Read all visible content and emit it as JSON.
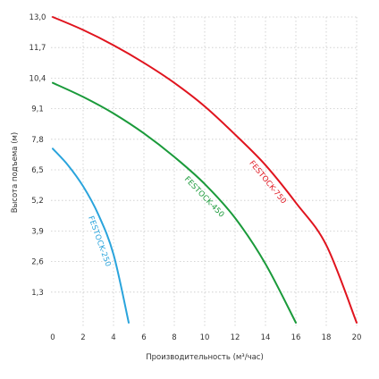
{
  "chart_data": {
    "type": "line",
    "xlabel": "Производительность (м³/час)",
    "ylabel": "Высота подъема (м)",
    "x_ticks": [
      "0",
      "2",
      "4",
      "6",
      "8",
      "10",
      "12",
      "14",
      "16",
      "18",
      "20"
    ],
    "y_ticks": [
      "1,3",
      "2,6",
      "3,9",
      "5,2",
      "6,5",
      "7,8",
      "9,1",
      "10,4",
      "11,7",
      "13,0"
    ],
    "xlim": [
      0,
      20
    ],
    "ylim": [
      0,
      13
    ],
    "grid": true,
    "series": [
      {
        "name": "FESTOCK-750",
        "color": "#e0141e",
        "x": [
          0,
          2,
          4,
          6,
          8,
          10,
          12,
          14,
          16,
          18,
          20
        ],
        "y": [
          13.0,
          12.45,
          11.8,
          11.05,
          10.2,
          9.2,
          8.0,
          6.7,
          5.1,
          3.3,
          0.0
        ]
      },
      {
        "name": "FESTOCK-450",
        "color": "#1a9a3a",
        "x": [
          0,
          2,
          4,
          6,
          8,
          10,
          12,
          14,
          16
        ],
        "y": [
          10.2,
          9.6,
          8.9,
          8.05,
          7.05,
          5.9,
          4.45,
          2.5,
          0.0
        ]
      },
      {
        "name": "FESTOCK-250",
        "color": "#2aa4dc",
        "x": [
          0,
          1,
          2,
          3,
          4,
          5
        ],
        "y": [
          7.4,
          6.7,
          5.8,
          4.6,
          2.9,
          0.0
        ]
      }
    ]
  }
}
